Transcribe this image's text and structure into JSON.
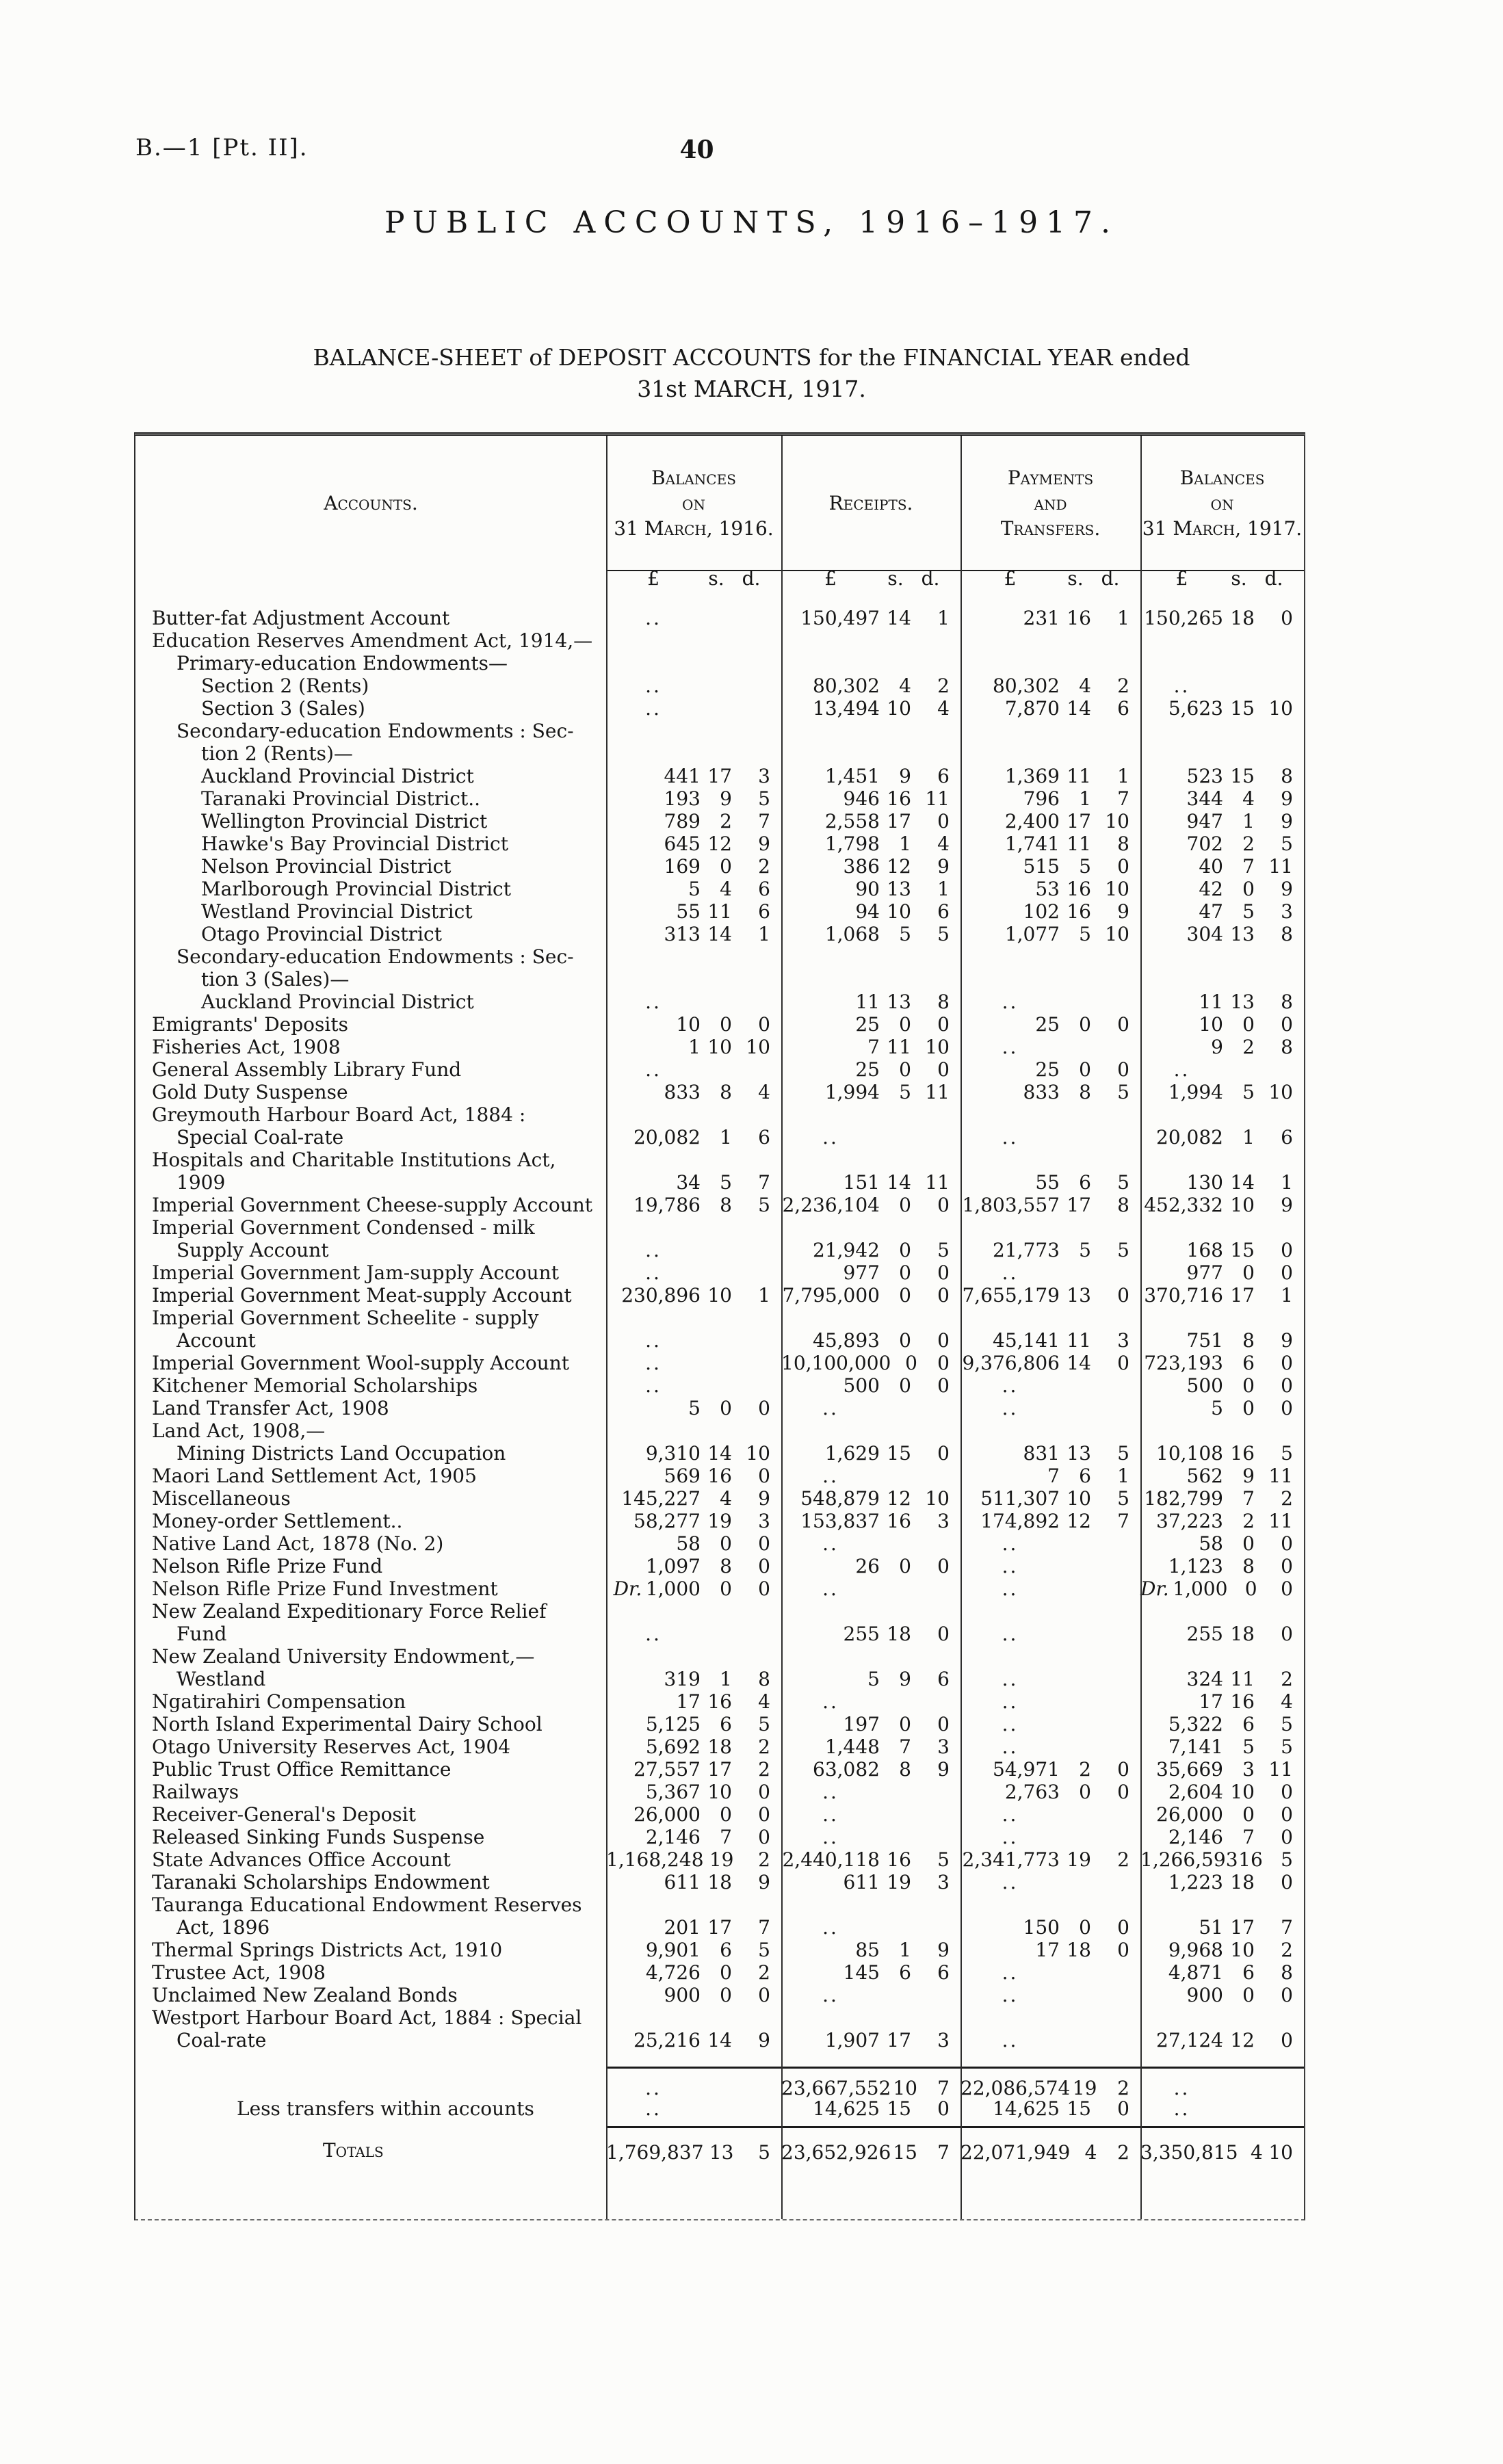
{
  "colors": {
    "ink": "#161616",
    "paper": "#fcfcfa"
  },
  "page": {
    "doc_ref": "B.—1 [Pt. II].",
    "page_number": "40",
    "title": "PUBLIC ACCOUNTS, 1916–1917.",
    "subtitle_line1": "BALANCE-SHEET of DEPOSIT ACCOUNTS for the FINANCIAL YEAR ended",
    "subtitle_line2": "31st MARCH, 1917."
  },
  "table": {
    "headers": {
      "accounts": "Accounts.",
      "balances_1916": [
        "Balances",
        "on",
        "31 March, 1916."
      ],
      "receipts": [
        "Receipts."
      ],
      "payments": [
        "Payments",
        "and",
        "Transfers."
      ],
      "balances_1917": [
        "Balances",
        "on",
        "31 March, 1917."
      ]
    },
    "currency": [
      "£",
      "s.",
      "d."
    ],
    "rows": [
      {
        "i": 0,
        "t": "Butter-fat Adjustment Account",
        "d": 2,
        "a": "..",
        "r": "150,497 14 1",
        "p": "231 16 1",
        "b": "150,265 18 0"
      },
      {
        "i": 0,
        "t": "Education Reserves Amendment Act, 1914,—",
        "d": 0,
        "a": "",
        "r": "",
        "p": "",
        "b": ""
      },
      {
        "i": 1,
        "t": "Primary-education Endowments—",
        "d": 0,
        "a": "",
        "r": "",
        "p": "",
        "b": ""
      },
      {
        "i": 2,
        "t": "Section 2 (Rents)",
        "d": 3,
        "a": "..",
        "r": "80,302 4 2",
        "p": "80,302 4 2",
        "b": ".."
      },
      {
        "i": 2,
        "t": "Section 3 (Sales)",
        "d": 3,
        "a": "..",
        "r": "13,494 10 4",
        "p": "7,870 14 6",
        "b": "5,623 15 10"
      },
      {
        "i": 1,
        "t": "Secondary-education Endowments : Sec-",
        "d": 0,
        "a": "",
        "r": "",
        "p": "",
        "b": ""
      },
      {
        "i": 2,
        "t": "tion 2 (Rents)—",
        "d": 0,
        "a": "",
        "r": "",
        "p": "",
        "b": ""
      },
      {
        "i": 2,
        "t": "Auckland Provincial District",
        "d": 1,
        "a": "441 17 3",
        "r": "1,451 9 6",
        "p": "1,369 11 1",
        "b": "523 15 8"
      },
      {
        "i": 2,
        "t": "Taranaki Provincial District..",
        "d": 1,
        "a": "193 9 5",
        "r": "946 16 11",
        "p": "796 1 7",
        "b": "344 4 9"
      },
      {
        "i": 2,
        "t": "Wellington Provincial District",
        "d": 1,
        "a": "789 2 7",
        "r": "2,558 17 0",
        "p": "2,400 17 10",
        "b": "947 1 9"
      },
      {
        "i": 2,
        "t": "Hawke's Bay Provincial District",
        "d": 1,
        "a": "645 12 9",
        "r": "1,798 1 4",
        "p": "1,741 11 8",
        "b": "702 2 5"
      },
      {
        "i": 2,
        "t": "Nelson Provincial District",
        "d": 2,
        "a": "169 0 2",
        "r": "386 12 9",
        "p": "515 5 0",
        "b": "40 7 11"
      },
      {
        "i": 2,
        "t": "Marlborough Provincial District",
        "d": 1,
        "a": "5 4 6",
        "r": "90 13 1",
        "p": "53 16 10",
        "b": "42 0 9"
      },
      {
        "i": 2,
        "t": "Westland Provincial District",
        "d": 1,
        "a": "55 11 6",
        "r": "94 10 6",
        "p": "102 16 9",
        "b": "47 5 3"
      },
      {
        "i": 2,
        "t": "Otago Provincial District",
        "d": 2,
        "a": "313 14 1",
        "r": "1,068 5 5",
        "p": "1,077 5 10",
        "b": "304 13 8"
      },
      {
        "i": 1,
        "t": "Secondary-education Endowments : Sec-",
        "d": 0,
        "a": "",
        "r": "",
        "p": "",
        "b": ""
      },
      {
        "i": 2,
        "t": "tion 3 (Sales)—",
        "d": 0,
        "a": "",
        "r": "",
        "p": "",
        "b": ""
      },
      {
        "i": 2,
        "t": "Auckland Provincial District",
        "d": 1,
        "a": "..",
        "r": "11 13 8",
        "p": "..",
        "b": "11 13 8"
      },
      {
        "i": 0,
        "t": "Emigrants' Deposits",
        "d": 3,
        "a": "10 0 0",
        "r": "25 0 0",
        "p": "25 0 0",
        "b": "10 0 0"
      },
      {
        "i": 0,
        "t": "Fisheries Act, 1908",
        "d": 3,
        "a": "1 10 10",
        "r": "7 11 10",
        "p": "..",
        "b": "9 2 8"
      },
      {
        "i": 0,
        "t": "General Assembly Library Fund",
        "d": 2,
        "a": "..",
        "r": "25 0 0",
        "p": "25 0 0",
        "b": ".."
      },
      {
        "i": 0,
        "t": "Gold Duty Suspense",
        "d": 3,
        "a": "833 8 4",
        "r": "1,994 5 11",
        "p": "833 8 5",
        "b": "1,994 5 10"
      },
      {
        "i": 0,
        "t": "Greymouth Harbour Board Act, 1884 :",
        "d": 0,
        "a": "",
        "r": "",
        "p": "",
        "b": ""
      },
      {
        "i": 1,
        "t": "Special Coal-rate",
        "d": 3,
        "a": "20,082 1 6",
        "r": "..",
        "p": "..",
        "b": "20,082 1 6"
      },
      {
        "i": 0,
        "t": "Hospitals and Charitable Institutions Act,",
        "d": 0,
        "a": "",
        "r": "",
        "p": "",
        "b": ""
      },
      {
        "i": 1,
        "t": "1909",
        "d": 4,
        "a": "34 5 7",
        "r": "151 14 11",
        "p": "55 6 5",
        "b": "130 14 1"
      },
      {
        "i": 0,
        "t": "Imperial Government Cheese-supply Account",
        "d": 0,
        "a": "19,786 8 5",
        "r": "2,236,104 0 0",
        "p": "1,803,557 17 8",
        "b": "452,332 10 9"
      },
      {
        "i": 0,
        "t": "Imperial Government Condensed - milk",
        "d": 0,
        "a": "",
        "r": "",
        "p": "",
        "b": ""
      },
      {
        "i": 1,
        "t": "Supply Account",
        "d": 3,
        "a": "..",
        "r": "21,942 0 5",
        "p": "21,773 5 5",
        "b": "168 15 0"
      },
      {
        "i": 0,
        "t": "Imperial Government Jam-supply Account",
        "d": 0,
        "a": "..",
        "r": "977 0 0",
        "p": "..",
        "b": "977 0 0"
      },
      {
        "i": 0,
        "t": "Imperial Government Meat-supply Account",
        "d": 0,
        "a": "230,896 10 1",
        "r": "7,795,000 0 0",
        "p": "7,655,179 13 0",
        "b": "370,716 17 1"
      },
      {
        "i": 0,
        "t": "Imperial Government Scheelite - supply",
        "d": 0,
        "a": "",
        "r": "",
        "p": "",
        "b": ""
      },
      {
        "i": 1,
        "t": "Account",
        "d": 4,
        "a": "..",
        "r": "45,893 0 0",
        "p": "45,141 11 3",
        "b": "751 8 9"
      },
      {
        "i": 0,
        "t": "Imperial Government Wool-supply Account",
        "d": 0,
        "a": "..",
        "r": "10,100,000 0 0",
        "p": "9,376,806 14 0",
        "b": "723,193 6 0"
      },
      {
        "i": 0,
        "t": "Kitchener Memorial Scholarships",
        "d": 1,
        "a": "..",
        "r": "500 0 0",
        "p": "..",
        "b": "500 0 0"
      },
      {
        "i": 0,
        "t": "Land Transfer Act, 1908",
        "d": 2,
        "a": "5 0 0",
        "r": "..",
        "p": "..",
        "b": "5 0 0"
      },
      {
        "i": 0,
        "t": "Land Act, 1908,—",
        "d": 0,
        "a": "",
        "r": "",
        "p": "",
        "b": ""
      },
      {
        "i": 1,
        "t": "Mining Districts Land Occupation",
        "d": 1,
        "a": "9,310 14 10",
        "r": "1,629 15 0",
        "p": "831 13 5",
        "b": "10,108 16 5"
      },
      {
        "i": 0,
        "t": "Maori Land Settlement Act, 1905",
        "d": 1,
        "a": "569 16 0",
        "r": "..",
        "p": "7 6 1",
        "b": "562 9 11"
      },
      {
        "i": 0,
        "t": "Miscellaneous",
        "d": 4,
        "a": "145,227 4 9",
        "r": "548,879 12 10",
        "p": "511,307 10 5",
        "b": "182,799 7 2"
      },
      {
        "i": 0,
        "t": "Money-order Settlement..",
        "d": 2,
        "a": "58,277 19 3",
        "r": "153,837 16 3",
        "p": "174,892 12 7",
        "b": "37,223 2 11"
      },
      {
        "i": 0,
        "t": "Native Land Act, 1878 (No. 2)",
        "d": 2,
        "a": "58 0 0",
        "r": "..",
        "p": "..",
        "b": "58 0 0"
      },
      {
        "i": 0,
        "t": "Nelson Rifle Prize Fund",
        "d": 2,
        "a": "1,097 8 0",
        "r": "26 0 0",
        "p": "..",
        "b": "1,123 8 0"
      },
      {
        "i": 0,
        "t": "Nelson Rifle Prize Fund Investment",
        "d": 1,
        "a": "Dr. 1,000 0 0",
        "r": "..",
        "p": "..",
        "b": "Dr. 1,000 0 0"
      },
      {
        "i": 0,
        "t": "New Zealand Expeditionary Force Relief",
        "d": 0,
        "a": "",
        "r": "",
        "p": "",
        "b": ""
      },
      {
        "i": 1,
        "t": "Fund",
        "d": 4,
        "a": "..",
        "r": "255 18 0",
        "p": "..",
        "b": "255 18 0"
      },
      {
        "i": 0,
        "t": "New Zealand University Endowment,—",
        "d": 0,
        "a": "",
        "r": "",
        "p": "",
        "b": ""
      },
      {
        "i": 1,
        "t": "Westland",
        "d": 4,
        "a": "319 1 8",
        "r": "5 9 6",
        "p": "..",
        "b": "324 11 2"
      },
      {
        "i": 0,
        "t": "Ngatirahiri Compensation",
        "d": 2,
        "a": "17 16 4",
        "r": "..",
        "p": "..",
        "b": "17 16 4"
      },
      {
        "i": 0,
        "t": "North Island Experimental Dairy School",
        "d": 1,
        "a": "5,125 6 5",
        "r": "197 0 0",
        "p": "..",
        "b": "5,322 6 5"
      },
      {
        "i": 0,
        "t": "Otago University Reserves Act, 1904",
        "d": 1,
        "a": "5,692 18 2",
        "r": "1,448 7 3",
        "p": "..",
        "b": "7,141 5 5"
      },
      {
        "i": 0,
        "t": "Public Trust Office Remittance",
        "d": 2,
        "a": "27,557 17 2",
        "r": "63,082 8 9",
        "p": "54,971 2 0",
        "b": "35,669 3 11"
      },
      {
        "i": 0,
        "t": "Railways",
        "d": 4,
        "a": "5,367 10 0",
        "r": "..",
        "p": "2,763 0 0",
        "b": "2,604 10 0"
      },
      {
        "i": 0,
        "t": "Receiver-General's Deposit",
        "d": 2,
        "a": "26,000 0 0",
        "r": "..",
        "p": "..",
        "b": "26,000 0 0"
      },
      {
        "i": 0,
        "t": "Released Sinking Funds Suspense",
        "d": 1,
        "a": "2,146 7 0",
        "r": "..",
        "p": "..",
        "b": "2,146 7 0"
      },
      {
        "i": 0,
        "t": "State Advances Office Account",
        "d": 2,
        "a": "1,168,248 19 2",
        "r": "2,440,118 16 5",
        "p": "2,341,773 19 2",
        "b": "1,266,593 16 5"
      },
      {
        "i": 0,
        "t": "Taranaki Scholarships Endowment",
        "d": 1,
        "a": "611 18 9",
        "r": "611 19 3",
        "p": "..",
        "b": "1,223 18 0"
      },
      {
        "i": 0,
        "t": "Tauranga Educational Endowment Reserves",
        "d": 0,
        "a": "",
        "r": "",
        "p": "",
        "b": ""
      },
      {
        "i": 1,
        "t": "Act, 1896",
        "d": 4,
        "a": "201 17 7",
        "r": "..",
        "p": "150 0 0",
        "b": "51 17 7"
      },
      {
        "i": 0,
        "t": "Thermal Springs Districts Act, 1910",
        "d": 1,
        "a": "9,901 6 5",
        "r": "85 1 9",
        "p": "17 18 0",
        "b": "9,968 10 2"
      },
      {
        "i": 0,
        "t": "Trustee Act, 1908",
        "d": 3,
        "a": "4,726 0 2",
        "r": "145 6 6",
        "p": "..",
        "b": "4,871 6 8"
      },
      {
        "i": 0,
        "t": "Unclaimed New Zealand Bonds",
        "d": 2,
        "a": "900 0 0",
        "r": "..",
        "p": "..",
        "b": "900 0 0"
      },
      {
        "i": 0,
        "t": "Westport Harbour Board Act, 1884 : Special",
        "d": 0,
        "a": "",
        "r": "",
        "p": "",
        "b": ""
      },
      {
        "i": 1,
        "t": "Coal-rate",
        "d": 4,
        "a": "25,216 14 9",
        "r": "1,907 17 3",
        "p": "..",
        "b": "27,124 12 0"
      },
      {
        "c": "sum",
        "i": 0,
        "t": "",
        "d": 0,
        "a": "..",
        "r": "23,667,552 10 7",
        "p": "22,086,574 19 2",
        "b": ".."
      },
      {
        "c": "less",
        "i": 3,
        "t": "Less transfers within accounts",
        "d": 1,
        "a": "..",
        "r": "14,625 15 0",
        "p": "14,625 15 0",
        "b": ".."
      },
      {
        "c": "totals",
        "i": 4,
        "t": "Totals",
        "d": 2,
        "a": "1,769,837 13 5",
        "r": "23,652,926 15 7",
        "p": "22,071,949 4 2",
        "b": "3,350,815 4 10"
      }
    ]
  }
}
